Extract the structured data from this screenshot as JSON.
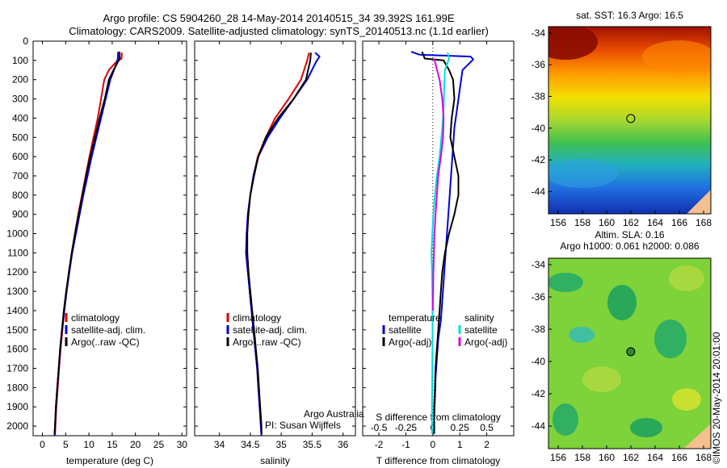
{
  "header": {
    "title_line1": "Argo profile: CS 5904260_28 14-May-2014 20140515_34 39.392S 161.99E",
    "title_line2": "Climatology: CARS2009. Satellite-adjusted climatology: synTS_20140513.nc (1.1d earlier)"
  },
  "credits": {
    "line1": "Argo Australia",
    "line2": "PI: Susan Wijffels"
  },
  "copyright": "©IMOS 20-May-2014 20:01:00",
  "colors": {
    "climatology": "#dd0000",
    "satellite": "#0000dd",
    "argo": "#000000",
    "salinity_satellite": "#00dddd",
    "salinity_argo": "#dd00dd"
  },
  "chart_data": [
    {
      "type": "line",
      "id": "temperature",
      "xlabel": "temperature (deg C)",
      "ylabel": "",
      "xlim": [
        -2,
        31
      ],
      "ylim": [
        2050,
        0
      ],
      "xticks": [
        0,
        5,
        10,
        15,
        20,
        25,
        30
      ],
      "yticks": [
        0,
        100,
        200,
        300,
        400,
        500,
        600,
        700,
        800,
        900,
        1000,
        1100,
        1200,
        1300,
        1400,
        1500,
        1600,
        1700,
        1800,
        1900,
        2000
      ],
      "legend": [
        "climatology",
        "satellite-adj. clim.",
        "Argo(..raw -QC)"
      ],
      "series": [
        {
          "name": "climatology",
          "color": "#dd0000",
          "points": [
            [
              17.1,
              60
            ],
            [
              17.0,
              90
            ],
            [
              15.8,
              110
            ],
            [
              14.3,
              150
            ],
            [
              13.3,
              200
            ],
            [
              12.6,
              300
            ],
            [
              11.9,
              400
            ],
            [
              11.0,
              500
            ],
            [
              10.1,
              600
            ],
            [
              9.3,
              700
            ],
            [
              8.5,
              800
            ],
            [
              7.7,
              900
            ],
            [
              7.0,
              1000
            ],
            [
              6.3,
              1100
            ],
            [
              5.7,
              1200
            ],
            [
              5.2,
              1300
            ],
            [
              4.7,
              1400
            ],
            [
              4.3,
              1500
            ],
            [
              3.9,
              1600
            ],
            [
              3.6,
              1700
            ],
            [
              3.3,
              1800
            ],
            [
              3.0,
              1900
            ],
            [
              2.8,
              2000
            ],
            [
              2.7,
              2050
            ]
          ]
        },
        {
          "name": "satellite-adj. clim.",
          "color": "#0000dd",
          "points": [
            [
              16.3,
              55
            ],
            [
              16.2,
              90
            ],
            [
              16.0,
              110
            ],
            [
              15.4,
              150
            ],
            [
              14.6,
              200
            ],
            [
              13.6,
              300
            ],
            [
              12.6,
              400
            ],
            [
              11.6,
              500
            ],
            [
              10.6,
              600
            ],
            [
              9.7,
              700
            ],
            [
              8.8,
              800
            ],
            [
              8.0,
              900
            ],
            [
              7.2,
              1000
            ],
            [
              6.4,
              1100
            ],
            [
              5.8,
              1200
            ],
            [
              5.2,
              1300
            ],
            [
              4.7,
              1400
            ],
            [
              4.2,
              1500
            ],
            [
              3.8,
              1600
            ],
            [
              3.5,
              1700
            ],
            [
              3.2,
              1800
            ],
            [
              2.9,
              1900
            ],
            [
              2.7,
              2000
            ],
            [
              2.6,
              2050
            ]
          ]
        },
        {
          "name": "Argo(..raw -QC)",
          "color": "#000000",
          "points": [
            [
              16.6,
              55
            ],
            [
              16.6,
              90
            ],
            [
              16.2,
              110
            ],
            [
              15.3,
              150
            ],
            [
              14.3,
              200
            ],
            [
              13.4,
              300
            ],
            [
              12.3,
              400
            ],
            [
              11.3,
              500
            ],
            [
              10.3,
              600
            ],
            [
              9.4,
              700
            ],
            [
              8.6,
              800
            ],
            [
              7.8,
              900
            ],
            [
              7.0,
              1000
            ],
            [
              6.3,
              1100
            ],
            [
              5.7,
              1200
            ],
            [
              5.1,
              1300
            ],
            [
              4.6,
              1400
            ],
            [
              4.2,
              1500
            ],
            [
              3.8,
              1600
            ],
            [
              3.5,
              1700
            ],
            [
              3.2,
              1800
            ],
            [
              2.9,
              1900
            ],
            [
              2.7,
              2000
            ],
            [
              2.6,
              2040
            ]
          ]
        }
      ]
    },
    {
      "type": "line",
      "id": "salinity",
      "xlabel": "salinity",
      "xlim": [
        33.6,
        36.2
      ],
      "ylim": [
        2050,
        0
      ],
      "xticks": [
        34,
        34.5,
        35,
        35.5,
        36
      ],
      "legend": [
        "climatology",
        "satellite-adj. clim.",
        "Argo(..raw -QC)"
      ],
      "series": [
        {
          "name": "climatology",
          "color": "#dd0000",
          "points": [
            [
              35.45,
              60
            ],
            [
              35.42,
              100
            ],
            [
              35.32,
              200
            ],
            [
              35.12,
              300
            ],
            [
              34.9,
              400
            ],
            [
              34.75,
              500
            ],
            [
              34.62,
              600
            ],
            [
              34.55,
              700
            ],
            [
              34.5,
              800
            ],
            [
              34.46,
              900
            ],
            [
              34.45,
              1000
            ],
            [
              34.45,
              1100
            ],
            [
              34.47,
              1200
            ],
            [
              34.49,
              1300
            ],
            [
              34.52,
              1400
            ],
            [
              34.55,
              1500
            ],
            [
              34.58,
              1600
            ],
            [
              34.61,
              1700
            ],
            [
              34.63,
              1800
            ],
            [
              34.65,
              1900
            ],
            [
              34.67,
              2000
            ],
            [
              34.68,
              2050
            ]
          ]
        },
        {
          "name": "satellite-adj. clim.",
          "color": "#0000dd",
          "points": [
            [
              35.55,
              60
            ],
            [
              35.62,
              80
            ],
            [
              35.56,
              110
            ],
            [
              35.42,
              200
            ],
            [
              35.2,
              300
            ],
            [
              34.98,
              400
            ],
            [
              34.78,
              500
            ],
            [
              34.63,
              600
            ],
            [
              34.55,
              700
            ],
            [
              34.5,
              800
            ],
            [
              34.46,
              900
            ],
            [
              34.44,
              1000
            ],
            [
              34.43,
              1100
            ],
            [
              34.46,
              1200
            ],
            [
              34.49,
              1300
            ],
            [
              34.52,
              1400
            ],
            [
              34.55,
              1500
            ],
            [
              34.58,
              1600
            ],
            [
              34.61,
              1700
            ],
            [
              34.63,
              1800
            ],
            [
              34.65,
              1900
            ],
            [
              34.67,
              2000
            ],
            [
              34.68,
              2050
            ]
          ]
        },
        {
          "name": "Argo(..raw -QC)",
          "color": "#000000",
          "points": [
            [
              35.48,
              60
            ],
            [
              35.47,
              100
            ],
            [
              35.4,
              200
            ],
            [
              35.2,
              300
            ],
            [
              34.95,
              400
            ],
            [
              34.75,
              500
            ],
            [
              34.63,
              600
            ],
            [
              34.56,
              700
            ],
            [
              34.5,
              800
            ],
            [
              34.47,
              900
            ],
            [
              34.45,
              1000
            ],
            [
              34.45,
              1100
            ],
            [
              34.47,
              1200
            ],
            [
              34.5,
              1300
            ],
            [
              34.53,
              1400
            ],
            [
              34.56,
              1500
            ],
            [
              34.59,
              1600
            ],
            [
              34.62,
              1700
            ],
            [
              34.64,
              1800
            ],
            [
              34.66,
              1900
            ],
            [
              34.68,
              2000
            ],
            [
              34.68,
              2040
            ]
          ]
        }
      ]
    },
    {
      "type": "line",
      "id": "difference",
      "xlabel": "T difference from climatology",
      "xlabel_top": "S difference from climatology",
      "xlim": [
        -2.6,
        3.0
      ],
      "ylim": [
        2050,
        0
      ],
      "xticks": [
        -2,
        -1,
        0,
        1,
        2
      ],
      "xticks_top": [
        -0.5,
        -0.25,
        0,
        0.25,
        0.5
      ],
      "legend_groups": [
        {
          "title": "temperature",
          "items": [
            "satellite",
            "Argo(-adj)"
          ]
        },
        {
          "title": "salinity",
          "items": [
            "satellite",
            "Argo(-adj)"
          ]
        }
      ],
      "series": [
        {
          "name": "temperature satellite",
          "color": "#0000dd",
          "points": [
            [
              -0.8,
              55
            ],
            [
              -0.5,
              70
            ],
            [
              1.4,
              80
            ],
            [
              1.5,
              95
            ],
            [
              1.1,
              150
            ],
            [
              1.0,
              250
            ],
            [
              0.9,
              350
            ],
            [
              0.8,
              450
            ],
            [
              0.75,
              550
            ],
            [
              0.7,
              650
            ],
            [
              0.65,
              750
            ],
            [
              0.6,
              850
            ],
            [
              0.55,
              950
            ],
            [
              0.5,
              1050
            ],
            [
              0.45,
              1150
            ],
            [
              0.4,
              1250
            ],
            [
              0.35,
              1350
            ],
            [
              0.3,
              1450
            ],
            [
              0.2,
              1550
            ],
            [
              0.15,
              1650
            ],
            [
              0.1,
              1750
            ],
            [
              0.08,
              1850
            ],
            [
              0.05,
              1950
            ],
            [
              0.05,
              2040
            ]
          ]
        },
        {
          "name": "temperature Argo(-adj)",
          "color": "#000000",
          "points": [
            [
              -0.4,
              55
            ],
            [
              -0.3,
              90
            ],
            [
              0.4,
              100
            ],
            [
              0.6,
              150
            ],
            [
              0.75,
              200
            ],
            [
              0.8,
              300
            ],
            [
              0.7,
              400
            ],
            [
              0.65,
              500
            ],
            [
              0.8,
              600
            ],
            [
              0.95,
              700
            ],
            [
              0.95,
              800
            ],
            [
              0.8,
              900
            ],
            [
              0.6,
              1000
            ],
            [
              0.45,
              1100
            ],
            [
              0.35,
              1200
            ],
            [
              0.3,
              1300
            ],
            [
              0.25,
              1400
            ],
            [
              0.2,
              1500
            ],
            [
              0.15,
              1600
            ],
            [
              0.1,
              1700
            ],
            [
              0.08,
              1800
            ],
            [
              0.05,
              1900
            ],
            [
              0.05,
              2040
            ]
          ]
        },
        {
          "name": "salinity satellite",
          "color": "#00dddd",
          "points": [
            [
              0.55,
              60
            ],
            [
              0.6,
              90
            ],
            [
              0.45,
              150
            ],
            [
              0.42,
              250
            ],
            [
              0.4,
              350
            ],
            [
              0.35,
              450
            ],
            [
              0.25,
              600
            ],
            [
              0.15,
              700
            ],
            [
              0.08,
              800
            ],
            [
              0.02,
              900
            ],
            [
              -0.02,
              1000
            ],
            [
              -0.05,
              1100
            ],
            [
              -0.03,
              1200
            ],
            [
              -0.02,
              1300
            ],
            [
              -0.01,
              1400
            ],
            [
              -0.01,
              1500
            ],
            [
              -0.02,
              1700
            ],
            [
              -0.03,
              1900
            ],
            [
              -0.03,
              2040
            ]
          ]
        },
        {
          "name": "salinity Argo(-adj)",
          "color": "#dd00dd",
          "points": [
            [
              0.05,
              90
            ],
            [
              0.1,
              120
            ],
            [
              0.25,
              200
            ],
            [
              0.35,
              300
            ],
            [
              0.4,
              400
            ],
            [
              0.38,
              500
            ],
            [
              0.3,
              600
            ],
            [
              0.2,
              700
            ],
            [
              0.15,
              800
            ],
            [
              0.1,
              900
            ],
            [
              0.06,
              1000
            ],
            [
              0.04,
              1100
            ],
            [
              0.02,
              1200
            ],
            [
              0.01,
              1300
            ],
            [
              0.0,
              1400
            ]
          ]
        }
      ]
    },
    {
      "type": "heatmap",
      "id": "sst_map",
      "title": "sat. SST: 16.3 Argo: 16.5",
      "xlim": [
        155.2,
        168.6
      ],
      "ylim": [
        -45.4,
        -33.6
      ],
      "xticks": [
        156,
        158,
        160,
        162,
        164,
        166,
        168
      ],
      "yticks": [
        -34,
        -36,
        -38,
        -40,
        -42,
        -44
      ],
      "marker": {
        "lon": 161.99,
        "lat": -39.392
      }
    },
    {
      "type": "heatmap",
      "id": "sla_map",
      "title_lines": [
        "Altim. SLA: 0.16",
        "Argo h1000: 0.061 h2000: 0.086"
      ],
      "xlim": [
        155.2,
        168.6
      ],
      "ylim": [
        -45.4,
        -33.6
      ],
      "xticks": [
        156,
        158,
        160,
        162,
        164,
        166,
        168
      ],
      "yticks": [
        -34,
        -36,
        -38,
        -40,
        -42,
        -44
      ],
      "marker": {
        "lon": 161.99,
        "lat": -39.392
      }
    }
  ]
}
